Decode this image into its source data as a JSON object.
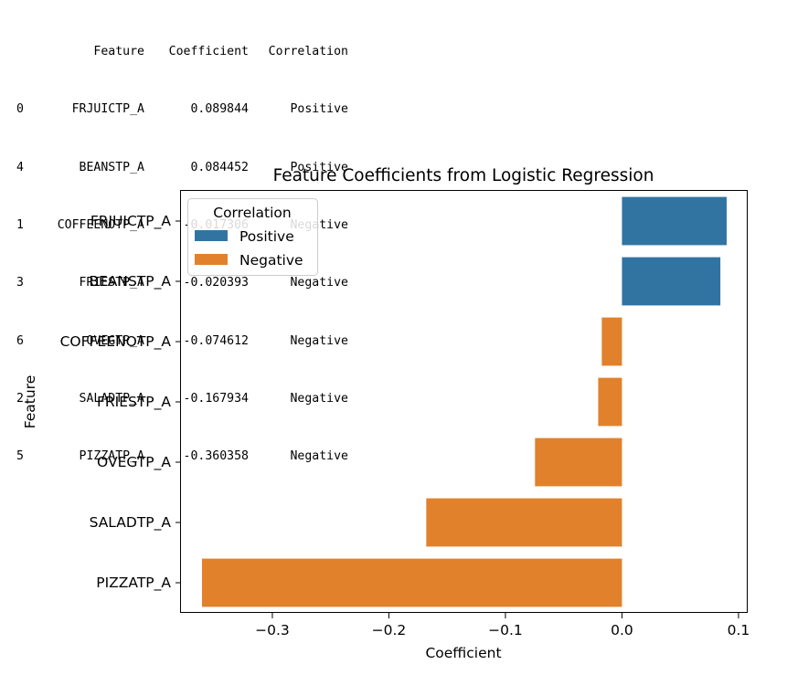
{
  "dataframe": {
    "columns": [
      "",
      "Feature",
      "Coefficient",
      "Correlation"
    ],
    "rows": [
      {
        "index": "0",
        "feature": "FRJUICTP_A",
        "coefficient": "0.089844",
        "correlation": "Positive"
      },
      {
        "index": "4",
        "feature": "BEANSTP_A",
        "coefficient": "0.084452",
        "correlation": "Positive"
      },
      {
        "index": "1",
        "feature": "COFFEENOTP_A",
        "coefficient": "-0.017306",
        "correlation": "Negative"
      },
      {
        "index": "3",
        "feature": "FRIESTP_A",
        "coefficient": "-0.020393",
        "correlation": "Negative"
      },
      {
        "index": "6",
        "feature": "OVEGTP_A",
        "coefficient": "-0.074612",
        "correlation": "Negative"
      },
      {
        "index": "2",
        "feature": "SALADTP_A",
        "coefficient": "-0.167934",
        "correlation": "Negative"
      },
      {
        "index": "5",
        "feature": "PIZZATP_A",
        "coefficient": "-0.360358",
        "correlation": "Negative"
      }
    ]
  },
  "chart_data": {
    "type": "bar",
    "orientation": "horizontal",
    "title": "Feature Coefficients from Logistic Regression",
    "xlabel": "Coefficient",
    "ylabel": "Feature",
    "categories": [
      "FRJUICTP_A",
      "BEANSTP_A",
      "COFFEENOTP_A",
      "FRIESTP_A",
      "OVEGTP_A",
      "SALADTP_A",
      "PIZZATP_A"
    ],
    "values": [
      0.089844,
      0.084452,
      -0.017306,
      -0.020393,
      -0.074612,
      -0.167934,
      -0.360358
    ],
    "groups": [
      "Positive",
      "Positive",
      "Negative",
      "Negative",
      "Negative",
      "Negative",
      "Negative"
    ],
    "xlim": [
      -0.3784,
      0.1079
    ],
    "xticks": [
      {
        "value": -0.3,
        "label": "−0.3"
      },
      {
        "value": -0.2,
        "label": "−0.2"
      },
      {
        "value": -0.1,
        "label": "−0.1"
      },
      {
        "value": 0.0,
        "label": "0.0"
      },
      {
        "value": 0.1,
        "label": "0.1"
      }
    ],
    "grid": false,
    "legend": {
      "title": "Correlation",
      "placement": "upper-left",
      "entries": [
        {
          "name": "Positive",
          "color": "#3274a1"
        },
        {
          "name": "Negative",
          "color": "#e1812c"
        }
      ]
    },
    "colors": {
      "Positive": "#3274a1",
      "Negative": "#e1812c"
    }
  }
}
